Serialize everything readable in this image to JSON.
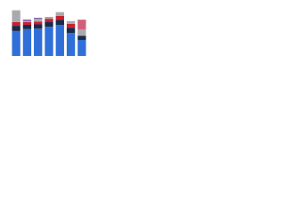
{
  "chart_data": {
    "type": "stacked-bar",
    "categories": [
      null,
      null,
      null,
      null,
      null,
      null,
      null
    ],
    "series": [
      {
        "color": "#2f6fd8",
        "values": [
          53,
          57,
          58,
          62,
          66,
          49,
          34
        ]
      },
      {
        "color": "#1b2a4a",
        "values": [
          11,
          9,
          9,
          11,
          11,
          11,
          9
        ]
      },
      {
        "color": "#c8202f",
        "values": [
          8,
          6,
          6,
          6,
          8,
          8,
          0
        ]
      },
      {
        "color": "#a9a9b0",
        "values": [
          25,
          2,
          6,
          4,
          8,
          6,
          13
        ]
      },
      {
        "color": "#7b4fa3",
        "values": [
          0,
          3,
          2,
          0,
          0,
          0,
          0
        ]
      },
      {
        "color": "#d0607a",
        "values": [
          0,
          0,
          0,
          0,
          0,
          0,
          21
        ]
      }
    ],
    "ylim": [
      0,
      100
    ]
  }
}
